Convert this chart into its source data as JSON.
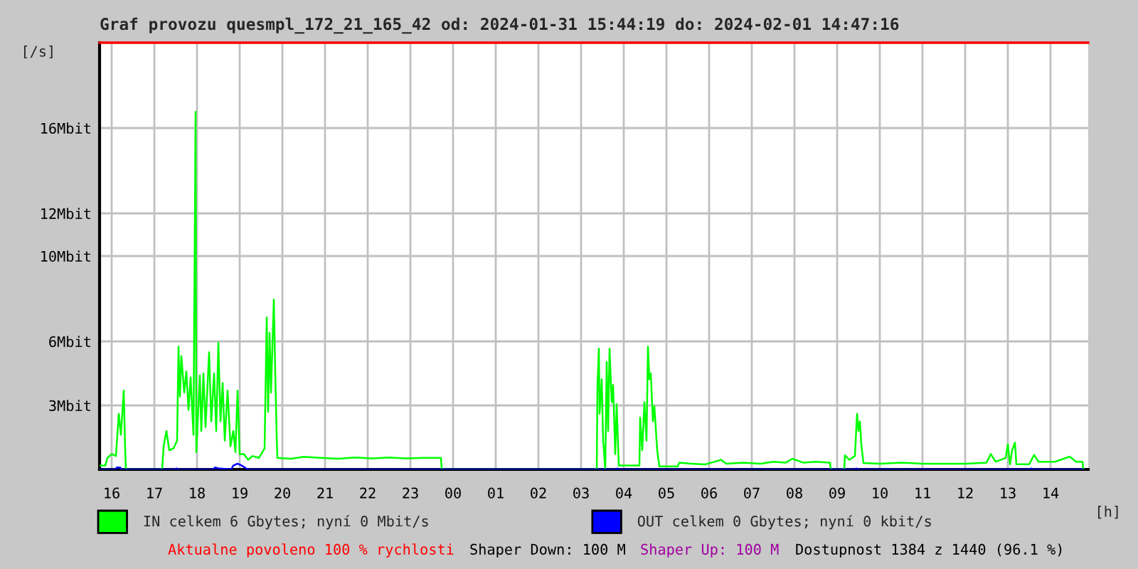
{
  "chart_data": {
    "type": "line",
    "title": "Graf provozu quesmpl_172_21_165_42 od: 2024-01-31 15:44:19 do: 2024-02-01 14:47:16",
    "xlabel": "[h]",
    "ylabel": "[/s]",
    "xlim": [
      "2024-01-31T15:43",
      "2024-02-01T14:53"
    ],
    "xticks": [
      {
        "value": "2024-01-31T16:00",
        "label": "16"
      },
      {
        "value": "2024-01-31T17:00",
        "label": "17"
      },
      {
        "value": "2024-01-31T18:00",
        "label": "18"
      },
      {
        "value": "2024-01-31T19:00",
        "label": "19"
      },
      {
        "value": "2024-01-31T20:00",
        "label": "20"
      },
      {
        "value": "2024-01-31T21:00",
        "label": "21"
      },
      {
        "value": "2024-01-31T22:00",
        "label": "22"
      },
      {
        "value": "2024-01-31T23:00",
        "label": "23"
      },
      {
        "value": "2024-02-01T00:00",
        "label": "00"
      },
      {
        "value": "2024-02-01T01:00",
        "label": "01"
      },
      {
        "value": "2024-02-01T02:00",
        "label": "02"
      },
      {
        "value": "2024-02-01T03:00",
        "label": "03"
      },
      {
        "value": "2024-02-01T04:00",
        "label": "04"
      },
      {
        "value": "2024-02-01T05:00",
        "label": "05"
      },
      {
        "value": "2024-02-01T06:00",
        "label": "06"
      },
      {
        "value": "2024-02-01T07:00",
        "label": "07"
      },
      {
        "value": "2024-02-01T08:00",
        "label": "08"
      },
      {
        "value": "2024-02-01T09:00",
        "label": "09"
      },
      {
        "value": "2024-02-01T10:00",
        "label": "10"
      },
      {
        "value": "2024-02-01T11:00",
        "label": "11"
      },
      {
        "value": "2024-02-01T12:00",
        "label": "12"
      },
      {
        "value": "2024-02-01T13:00",
        "label": "13"
      },
      {
        "value": "2024-02-01T14:00",
        "label": "14"
      }
    ],
    "ylim": [
      0,
      20
    ],
    "yticks": [
      {
        "value": 3,
        "label": "3Mbit"
      },
      {
        "value": 6,
        "label": "6Mbit"
      },
      {
        "value": 10,
        "label": "10Mbit"
      },
      {
        "value": 12,
        "label": "12Mbit"
      },
      {
        "value": 16,
        "label": "16Mbit"
      }
    ],
    "grid": true,
    "legend": "bottom",
    "series": [
      {
        "name": "IN celkem 6 Gbytes; nyní 0 Mbit/s",
        "color": "#00ff00",
        "x": [
          "2024-01-31T15:44",
          "2024-01-31T15:51",
          "2024-01-31T15:54",
          "2024-01-31T16:00",
          "2024-01-31T16:06",
          "2024-01-31T16:10",
          "2024-01-31T16:13",
          "2024-01-31T16:17",
          "2024-01-31T16:19",
          "2024-01-31T16:20",
          "2024-01-31T17:11",
          "2024-01-31T17:13",
          "2024-01-31T17:17",
          "2024-01-31T17:21",
          "2024-01-31T17:27",
          "2024-01-31T17:32",
          "2024-01-31T17:34",
          "2024-01-31T17:36",
          "2024-01-31T17:38",
          "2024-01-31T17:42",
          "2024-01-31T17:45",
          "2024-01-31T17:48",
          "2024-01-31T17:51",
          "2024-01-31T17:55",
          "2024-01-31T17:58",
          "2024-01-31T17:59",
          "2024-01-31T18:04",
          "2024-01-31T18:06",
          "2024-01-31T18:09",
          "2024-01-31T18:12",
          "2024-01-31T18:17",
          "2024-01-31T18:20",
          "2024-01-31T18:24",
          "2024-01-31T18:27",
          "2024-01-31T18:30",
          "2024-01-31T18:33",
          "2024-01-31T18:36",
          "2024-01-31T18:39",
          "2024-01-31T18:43",
          "2024-01-31T18:47",
          "2024-01-31T18:51",
          "2024-01-31T18:54",
          "2024-01-31T18:57",
          "2024-01-31T19:00",
          "2024-01-31T19:06",
          "2024-01-31T19:12",
          "2024-01-31T19:18",
          "2024-01-31T19:27",
          "2024-01-31T19:35",
          "2024-01-31T19:38",
          "2024-01-31T19:40",
          "2024-01-31T19:42",
          "2024-01-31T19:44",
          "2024-01-31T19:48",
          "2024-01-31T19:50",
          "2024-01-31T19:52",
          "2024-01-31T19:53",
          "2024-01-31T20:12",
          "2024-01-31T20:30",
          "2024-01-31T20:54",
          "2024-01-31T21:18",
          "2024-01-31T21:42",
          "2024-01-31T22:06",
          "2024-01-31T22:30",
          "2024-01-31T22:54",
          "2024-01-31T23:18",
          "2024-01-31T23:43",
          "2024-01-31T23:44",
          "2024-02-01T03:22",
          "2024-02-01T03:23",
          "2024-02-01T03:25",
          "2024-02-01T03:26",
          "2024-02-01T03:29",
          "2024-02-01T03:31",
          "2024-02-01T03:34",
          "2024-02-01T03:36",
          "2024-02-01T03:38",
          "2024-02-01T03:40",
          "2024-02-01T03:43",
          "2024-02-01T03:45",
          "2024-02-01T03:48",
          "2024-02-01T03:50",
          "2024-02-01T03:53",
          "2024-02-01T04:22",
          "2024-02-01T04:23",
          "2024-02-01T04:26",
          "2024-02-01T04:29",
          "2024-02-01T04:32",
          "2024-02-01T04:34",
          "2024-02-01T04:36",
          "2024-02-01T04:38",
          "2024-02-01T04:41",
          "2024-02-01T04:43",
          "2024-02-01T04:47",
          "2024-02-01T04:50",
          "2024-02-01T05:16",
          "2024-02-01T05:18",
          "2024-02-01T05:36",
          "2024-02-01T05:54",
          "2024-02-01T06:17",
          "2024-02-01T06:24",
          "2024-02-01T06:48",
          "2024-02-01T07:12",
          "2024-02-01T07:30",
          "2024-02-01T07:48",
          "2024-02-01T07:57",
          "2024-02-01T08:12",
          "2024-02-01T08:30",
          "2024-02-01T08:50",
          "2024-02-01T08:51",
          "2024-02-01T09:10",
          "2024-02-01T09:11",
          "2024-02-01T09:17",
          "2024-02-01T09:25",
          "2024-02-01T09:27",
          "2024-02-01T09:28",
          "2024-02-01T09:30",
          "2024-02-01T09:32",
          "2024-02-01T09:34",
          "2024-02-01T09:37",
          "2024-02-01T10:00",
          "2024-02-01T10:30",
          "2024-02-01T11:00",
          "2024-02-01T11:30",
          "2024-02-01T12:00",
          "2024-02-01T12:30",
          "2024-02-01T12:36",
          "2024-02-01T12:43",
          "2024-02-01T12:57",
          "2024-02-01T13:00",
          "2024-02-01T13:03",
          "2024-02-01T13:06",
          "2024-02-01T13:10",
          "2024-02-01T13:12",
          "2024-02-01T13:30",
          "2024-02-01T13:37",
          "2024-02-01T13:43",
          "2024-02-01T14:06",
          "2024-02-01T14:27",
          "2024-02-01T14:36",
          "2024-02-01T14:45",
          "2024-02-01T14:46"
        ],
        "values": [
          0.18,
          0.18,
          0.54,
          0.72,
          0.63,
          2.61,
          1.62,
          3.69,
          0.9,
          0,
          0,
          1.08,
          1.8,
          0.9,
          0.99,
          1.35,
          5.76,
          3.42,
          5.31,
          3.6,
          4.59,
          2.79,
          4.32,
          1.62,
          16.76,
          0.81,
          4.41,
          1.8,
          4.5,
          1.98,
          5.49,
          2.25,
          4.5,
          1.8,
          5.94,
          2.25,
          4.05,
          1.35,
          3.69,
          1.08,
          1.8,
          0.81,
          3.69,
          0.72,
          0.72,
          0.45,
          0.63,
          0.54,
          0.99,
          7.12,
          2.7,
          6.4,
          3.6,
          7.96,
          4.5,
          1.53,
          0.54,
          0.5,
          0.59,
          0.54,
          0.5,
          0.56,
          0.52,
          0.56,
          0.52,
          0.54,
          0.54,
          0,
          0,
          3.87,
          5.67,
          2.61,
          4.23,
          1.35,
          0,
          5.04,
          1.8,
          5.67,
          3.15,
          3.96,
          0.72,
          3.06,
          0.18,
          0.18,
          2.43,
          0.9,
          3.15,
          1.35,
          5.76,
          4.23,
          4.5,
          2.25,
          2.97,
          0.9,
          0.14,
          0.14,
          0.32,
          0.27,
          0.23,
          0.45,
          0.27,
          0.32,
          0.27,
          0.36,
          0.32,
          0.5,
          0.32,
          0.36,
          0.32,
          0,
          0,
          0.66,
          0.45,
          0.63,
          1.98,
          2.61,
          1.8,
          2.25,
          1.17,
          0.3,
          0.27,
          0.32,
          0.27,
          0.27,
          0.27,
          0.32,
          0.72,
          0.36,
          0.54,
          1.17,
          0.24,
          0.9,
          1.26,
          0.24,
          0.24,
          0.68,
          0.36,
          0.36,
          0.6,
          0.36,
          0.36,
          0
        ]
      },
      {
        "name": "OUT celkem 0 Gbytes; nyní 0 kbit/s",
        "color": "#0000ff",
        "x": [
          "2024-01-31T15:44",
          "2024-01-31T16:06",
          "2024-01-31T16:07",
          "2024-01-31T16:12",
          "2024-01-31T16:13",
          "2024-01-31T17:30",
          "2024-01-31T17:31",
          "2024-01-31T17:33",
          "2024-01-31T18:24",
          "2024-01-31T18:25",
          "2024-01-31T18:30",
          "2024-01-31T18:48",
          "2024-01-31T18:51",
          "2024-01-31T18:57",
          "2024-01-31T19:03",
          "2024-01-31T19:09",
          "2024-01-31T19:12",
          "2024-02-01T03:50",
          "2024-02-01T03:51",
          "2024-02-01T03:52",
          "2024-02-01T09:26",
          "2024-02-01T09:27",
          "2024-02-01T09:28",
          "2024-02-01T13:32",
          "2024-02-01T13:33",
          "2024-02-01T13:34",
          "2024-02-01T14:46"
        ],
        "values": [
          0,
          0,
          0.09,
          0.09,
          0,
          0,
          0.05,
          0,
          0,
          0.09,
          0.05,
          0,
          0.18,
          0.27,
          0.18,
          0.05,
          0,
          0,
          0.05,
          0,
          0,
          0.05,
          0,
          0,
          0.05,
          0,
          0
        ]
      }
    ],
    "annotations": [
      "Aktualne povoleno 100 % rychlosti",
      "Shaper Down: 100 M",
      "Shaper Up: 100 M",
      "Dostupnost 1384 z 1440 (96.1 %)"
    ]
  }
}
